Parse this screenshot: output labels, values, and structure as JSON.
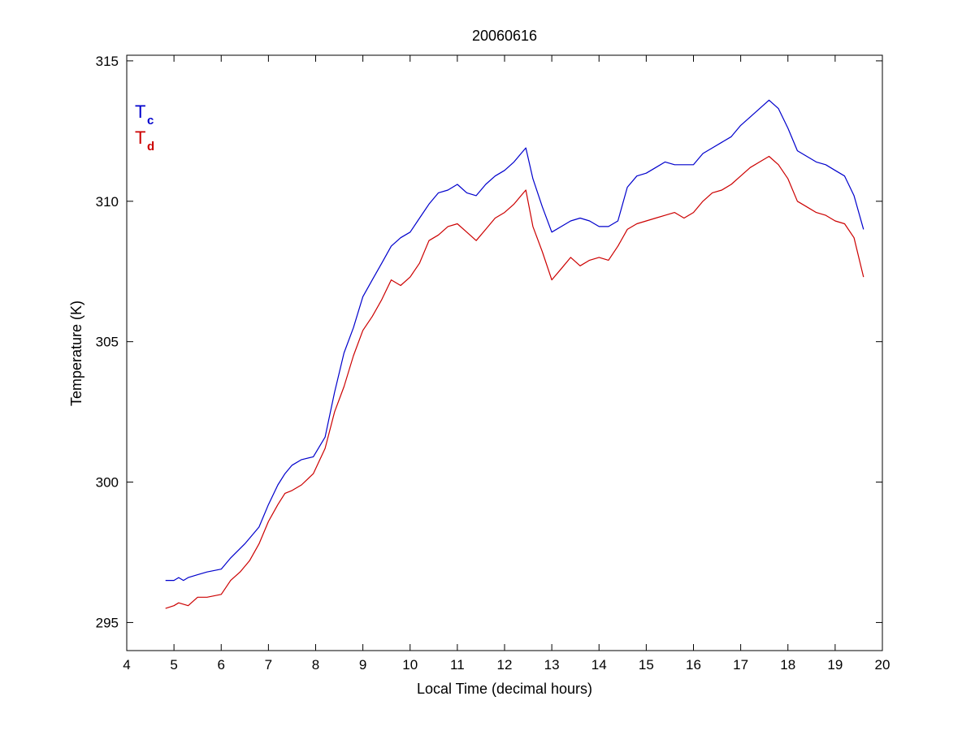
{
  "chart_data": {
    "type": "line",
    "title": "20060616",
    "xlabel": "Local Time (decimal hours)",
    "ylabel": "Temperature (K)",
    "xlim": [
      4,
      20
    ],
    "ylim": [
      294,
      315.2
    ],
    "xticks": [
      4,
      5,
      6,
      7,
      8,
      9,
      10,
      11,
      12,
      13,
      14,
      15,
      16,
      17,
      18,
      19,
      20
    ],
    "yticks": [
      295,
      300,
      305,
      310,
      315
    ],
    "grid": false,
    "legend_placement": "top-left",
    "series": [
      {
        "name": "Tc",
        "legend_main": "T",
        "legend_sub": "c",
        "color": "#0000cc",
        "x": [
          4.82,
          5.0,
          5.1,
          5.2,
          5.3,
          5.5,
          5.7,
          6.0,
          6.2,
          6.5,
          6.8,
          7.0,
          7.2,
          7.35,
          7.5,
          7.7,
          7.95,
          8.2,
          8.4,
          8.6,
          8.8,
          9.0,
          9.2,
          9.4,
          9.6,
          9.8,
          10.0,
          10.2,
          10.4,
          10.6,
          10.8,
          11.0,
          11.2,
          11.4,
          11.6,
          11.8,
          12.0,
          12.2,
          12.35,
          12.45,
          12.6,
          12.8,
          13.0,
          13.2,
          13.4,
          13.6,
          13.8,
          14.0,
          14.2,
          14.4,
          14.6,
          14.8,
          15.0,
          15.2,
          15.4,
          15.6,
          15.8,
          16.0,
          16.2,
          16.4,
          16.6,
          16.8,
          17.0,
          17.2,
          17.4,
          17.6,
          17.8,
          18.0,
          18.2,
          18.4,
          18.6,
          18.8,
          19.0,
          19.2,
          19.4,
          19.6
        ],
        "y": [
          296.5,
          296.5,
          296.6,
          296.5,
          296.6,
          296.7,
          296.8,
          296.9,
          297.3,
          297.8,
          298.4,
          299.2,
          299.9,
          300.3,
          300.6,
          300.8,
          300.9,
          301.6,
          303.2,
          304.6,
          305.5,
          306.6,
          307.2,
          307.8,
          308.4,
          308.7,
          308.9,
          309.4,
          309.9,
          310.3,
          310.4,
          310.6,
          310.3,
          310.2,
          310.6,
          310.9,
          311.1,
          311.4,
          311.7,
          311.9,
          310.8,
          309.8,
          308.9,
          309.1,
          309.3,
          309.4,
          309.3,
          309.1,
          309.1,
          309.3,
          310.5,
          310.9,
          311.0,
          311.2,
          311.4,
          311.3,
          311.3,
          311.3,
          311.7,
          311.9,
          312.1,
          312.3,
          312.7,
          313.0,
          313.3,
          313.6,
          313.3,
          312.6,
          311.8,
          311.6,
          311.4,
          311.3,
          311.1,
          310.9,
          310.2,
          309.0
        ]
      },
      {
        "name": "Td",
        "legend_main": "T",
        "legend_sub": "d",
        "color": "#cc0000",
        "x": [
          4.82,
          5.0,
          5.1,
          5.3,
          5.5,
          5.7,
          6.0,
          6.2,
          6.4,
          6.6,
          6.8,
          7.0,
          7.2,
          7.35,
          7.5,
          7.7,
          7.95,
          8.2,
          8.4,
          8.6,
          8.8,
          9.0,
          9.2,
          9.4,
          9.6,
          9.8,
          10.0,
          10.2,
          10.4,
          10.6,
          10.8,
          11.0,
          11.2,
          11.4,
          11.6,
          11.8,
          12.0,
          12.2,
          12.35,
          12.45,
          12.6,
          12.8,
          13.0,
          13.2,
          13.4,
          13.6,
          13.8,
          14.0,
          14.2,
          14.4,
          14.6,
          14.8,
          15.0,
          15.2,
          15.4,
          15.6,
          15.8,
          16.0,
          16.2,
          16.4,
          16.6,
          16.8,
          17.0,
          17.2,
          17.4,
          17.6,
          17.8,
          18.0,
          18.2,
          18.4,
          18.6,
          18.8,
          19.0,
          19.2,
          19.4,
          19.6
        ],
        "y": [
          295.5,
          295.6,
          295.7,
          295.6,
          295.9,
          295.9,
          296.0,
          296.5,
          296.8,
          297.2,
          297.8,
          298.6,
          299.2,
          299.6,
          299.7,
          299.9,
          300.3,
          301.2,
          302.5,
          303.4,
          304.5,
          305.4,
          305.9,
          306.5,
          307.2,
          307.0,
          307.3,
          307.8,
          308.6,
          308.8,
          309.1,
          309.2,
          308.9,
          308.6,
          309.0,
          309.4,
          309.6,
          309.9,
          310.2,
          310.4,
          309.1,
          308.2,
          307.2,
          307.6,
          308.0,
          307.7,
          307.9,
          308.0,
          307.9,
          308.4,
          309.0,
          309.2,
          309.3,
          309.4,
          309.5,
          309.6,
          309.4,
          309.6,
          310.0,
          310.3,
          310.4,
          310.6,
          310.9,
          311.2,
          311.4,
          311.6,
          311.3,
          310.8,
          310.0,
          309.8,
          309.6,
          309.5,
          309.3,
          309.2,
          308.7,
          307.3
        ]
      }
    ]
  }
}
